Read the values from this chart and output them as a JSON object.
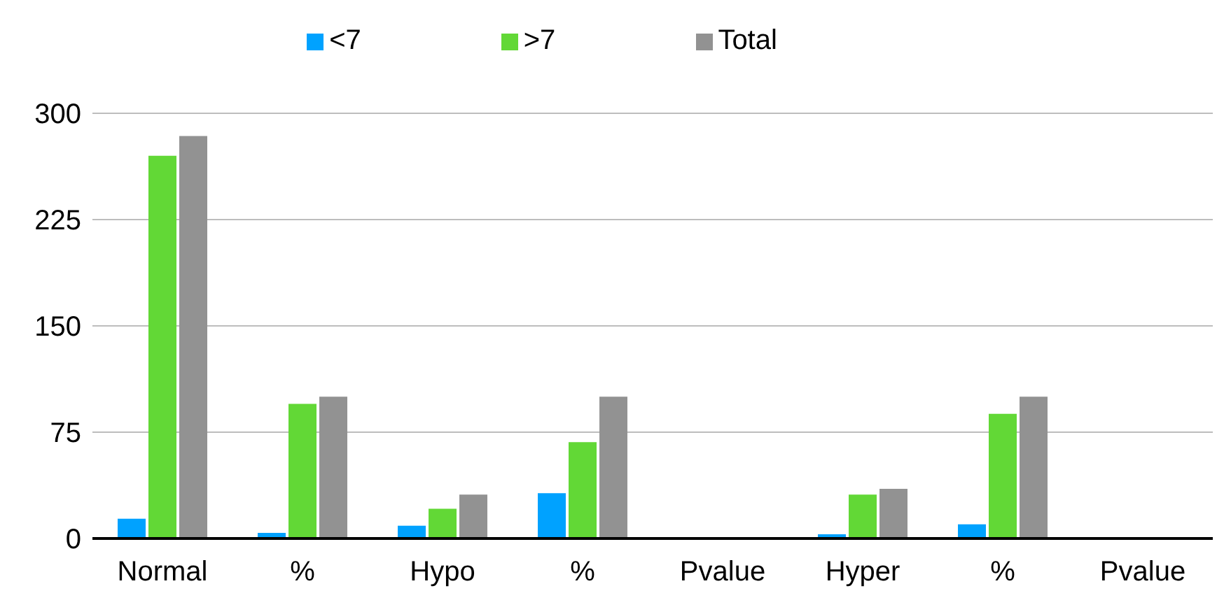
{
  "chart_data": {
    "type": "bar",
    "categories": [
      "Normal",
      "%",
      "Hypo",
      "%",
      "Pvalue",
      "Hyper",
      "%",
      "Pvalue"
    ],
    "series": [
      {
        "name": "<7",
        "color": "#00a2ff",
        "values": [
          14,
          4,
          9,
          32,
          null,
          3,
          10,
          null
        ]
      },
      {
        "name": ">7",
        "color": "#62d836",
        "values": [
          270,
          95,
          21,
          68,
          null,
          31,
          88,
          null
        ]
      },
      {
        "name": "Total",
        "color": "#929292",
        "values": [
          284,
          100,
          31,
          100,
          null,
          35,
          100,
          null
        ]
      }
    ],
    "ylim": [
      0,
      300
    ],
    "yticks": [
      0,
      75,
      150,
      225,
      300
    ],
    "grid": "y",
    "legend": "top"
  }
}
